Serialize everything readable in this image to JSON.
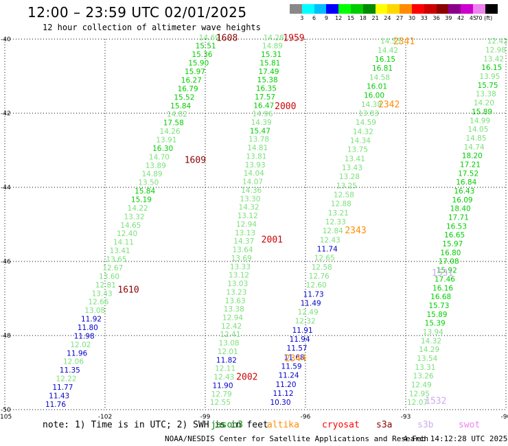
{
  "title": "12:00 – 23:59 UTC 02/01/2025",
  "subtitle": "12 hour collection of altimeter wave heights",
  "colorbar": {
    "colors": [
      "#888888",
      "#00ffff",
      "#00bfff",
      "#0000ff",
      "#00ff00",
      "#00cd00",
      "#008b00",
      "#ffff00",
      "#ffd700",
      "#ff8c00",
      "#ff0000",
      "#cd0000",
      "#8b0000",
      "#8b008b",
      "#cd00cd",
      "#ee82ee",
      "#000000"
    ],
    "ticks": [
      "3",
      "6",
      "9",
      "12",
      "15",
      "18",
      "21",
      "24",
      "27",
      "30",
      "33",
      "36",
      "39",
      "42",
      "45",
      "70 (ft)"
    ]
  },
  "axes": {
    "x_label_values": [
      -105,
      -102,
      -99,
      -96,
      -93,
      -90
    ],
    "x_tick_labels": [
      "-105",
      "-102",
      "-99",
      "-96",
      "-93",
      "-90"
    ],
    "y_label_values": [
      -40,
      -42,
      -44,
      -46,
      -48,
      -50
    ],
    "y_tick_labels": [
      "-40",
      "-42",
      "-44",
      "-46",
      "-48",
      "-50"
    ]
  },
  "note": "note: 1) Time is in UTC; 2) SWH is in feet",
  "satellites": [
    {
      "name": "jason3",
      "color": "#008b00"
    },
    {
      "name": "altika",
      "color": "#ff8c00"
    },
    {
      "name": "cryosat",
      "color": "#ff0000"
    },
    {
      "name": "s3a",
      "color": "#8b0000"
    },
    {
      "name": "s3b",
      "color": "#ccaaee"
    },
    {
      "name": "swot",
      "color": "#ee82ee"
    }
  ],
  "credit": "NOAA/NESDIS Center for Satellite Applications and Research",
  "timestamp": "4 Feb 14:12:28 UTC 2025",
  "time_labels": [
    {
      "text": "1608",
      "lon": -98.35,
      "lat": -39.95,
      "color": "#8b0000"
    },
    {
      "text": "1959",
      "lon": -96.35,
      "lat": -39.95,
      "color": "#cd0000"
    },
    {
      "text": "2341",
      "lon": -93.05,
      "lat": -40.05,
      "color": "#ff8c00"
    },
    {
      "text": "2000",
      "lon": -96.6,
      "lat": -41.8,
      "color": "#cd0000"
    },
    {
      "text": "2342",
      "lon": -93.5,
      "lat": -41.75,
      "color": "#ff8c00"
    },
    {
      "text": "1609",
      "lon": -99.3,
      "lat": -43.25,
      "color": "#8b0000"
    },
    {
      "text": "2001",
      "lon": -97.0,
      "lat": -45.4,
      "color": "#cd0000"
    },
    {
      "text": "2343",
      "lon": -94.5,
      "lat": -45.15,
      "color": "#ff8c00"
    },
    {
      "text": "1610",
      "lon": -101.3,
      "lat": -46.75,
      "color": "#8b0000"
    },
    {
      "text": "1531",
      "lon": -91.9,
      "lat": -46.3,
      "color": "#ccaaee"
    },
    {
      "text": "2344",
      "lon": -96.3,
      "lat": -48.6,
      "color": "#ff8c00"
    },
    {
      "text": "2002",
      "lon": -97.75,
      "lat": -49.1,
      "color": "#cd0000"
    },
    {
      "text": "1532",
      "lon": -92.1,
      "lat": -49.75,
      "color": "#ccaaee"
    }
  ],
  "tracks": [
    {
      "name": "s3a-1608",
      "lon0": -98.88,
      "lat0": -39.95,
      "lon1": -103.48,
      "lat1": -49.85,
      "values": [
        [
          "14.69",
          "#7ae07a"
        ],
        [
          "15.51",
          "#00cd00"
        ],
        [
          "15.36",
          "#00cd00"
        ],
        [
          "15.90",
          "#00cd00"
        ],
        [
          "15.97",
          "#00cd00"
        ],
        [
          "16.27",
          "#00cd00"
        ],
        [
          "16.79",
          "#00cd00"
        ],
        [
          "15.52",
          "#00cd00"
        ],
        [
          "15.84",
          "#00cd00"
        ],
        [
          "14.82",
          "#7ae07a"
        ],
        [
          "17.58",
          "#00cd00"
        ],
        [
          "14.26",
          "#7ae07a"
        ],
        [
          "13.91",
          "#7ae07a"
        ],
        [
          "16.30",
          "#00cd00"
        ],
        [
          "14.70",
          "#7ae07a"
        ],
        [
          "13.89",
          "#7ae07a"
        ],
        [
          "14.89",
          "#7ae07a"
        ],
        [
          "13.50",
          "#7ae07a"
        ],
        [
          "15.84",
          "#00cd00"
        ],
        [
          "15.19",
          "#00cd00"
        ],
        [
          "14.22",
          "#7ae07a"
        ],
        [
          "13.32",
          "#7ae07a"
        ],
        [
          "14.65",
          "#7ae07a"
        ],
        [
          "12.40",
          "#7ae07a"
        ],
        [
          "14.11",
          "#7ae07a"
        ],
        [
          "13.41",
          "#7ae07a"
        ],
        [
          "13.65",
          "#7ae07a"
        ],
        [
          "12.67",
          "#7ae07a"
        ],
        [
          "13.60",
          "#7ae07a"
        ],
        [
          "12.81",
          "#7ae07a"
        ],
        [
          "13.43",
          "#7ae07a"
        ],
        [
          "12.66",
          "#7ae07a"
        ],
        [
          "13.08",
          "#7ae07a"
        ],
        [
          "11.92",
          "#0000cd"
        ],
        [
          "11.80",
          "#0000cd"
        ],
        [
          "11.98",
          "#0000cd"
        ],
        [
          "12.02",
          "#7ae07a"
        ],
        [
          "11.96",
          "#0000cd"
        ],
        [
          "12.06",
          "#7ae07a"
        ],
        [
          "11.35",
          "#0000cd"
        ],
        [
          "12.22",
          "#7ae07a"
        ],
        [
          "11.77",
          "#0000cd"
        ],
        [
          "11.43",
          "#0000cd"
        ],
        [
          "11.76",
          "#0000cd"
        ]
      ]
    },
    {
      "name": "s3a-1959",
      "lon0": -96.95,
      "lat0": -39.95,
      "lon1": -98.55,
      "lat1": -49.8,
      "values": [
        [
          "14.28",
          "#7ae07a"
        ],
        [
          "14.89",
          "#7ae07a"
        ],
        [
          "15.31",
          "#00cd00"
        ],
        [
          "15.81",
          "#00cd00"
        ],
        [
          "17.49",
          "#00cd00"
        ],
        [
          "15.38",
          "#00cd00"
        ],
        [
          "16.35",
          "#00cd00"
        ],
        [
          "17.57",
          "#00cd00"
        ],
        [
          "16.47",
          "#00cd00"
        ],
        [
          "14.96",
          "#7ae07a"
        ],
        [
          "14.39",
          "#7ae07a"
        ],
        [
          "15.47",
          "#00cd00"
        ],
        [
          "13.78",
          "#7ae07a"
        ],
        [
          "14.81",
          "#7ae07a"
        ],
        [
          "13.81",
          "#7ae07a"
        ],
        [
          "13.93",
          "#7ae07a"
        ],
        [
          "14.04",
          "#7ae07a"
        ],
        [
          "14.07",
          "#7ae07a"
        ],
        [
          "14.36",
          "#7ae07a"
        ],
        [
          "13.30",
          "#7ae07a"
        ],
        [
          "14.32",
          "#7ae07a"
        ],
        [
          "13.12",
          "#7ae07a"
        ],
        [
          "12.94",
          "#7ae07a"
        ],
        [
          "13.13",
          "#7ae07a"
        ],
        [
          "14.37",
          "#7ae07a"
        ],
        [
          "13.64",
          "#7ae07a"
        ],
        [
          "13.69",
          "#7ae07a"
        ],
        [
          "13.33",
          "#7ae07a"
        ],
        [
          "13.12",
          "#7ae07a"
        ],
        [
          "13.03",
          "#7ae07a"
        ],
        [
          "13.23",
          "#7ae07a"
        ],
        [
          "13.63",
          "#7ae07a"
        ],
        [
          "13.38",
          "#7ae07a"
        ],
        [
          "12.94",
          "#7ae07a"
        ],
        [
          "12.42",
          "#7ae07a"
        ],
        [
          "12.41",
          "#7ae07a"
        ],
        [
          "13.08",
          "#7ae07a"
        ],
        [
          "12.01",
          "#7ae07a"
        ],
        [
          "11.82",
          "#0000cd"
        ],
        [
          "12.11",
          "#7ae07a"
        ],
        [
          "12.43",
          "#7ae07a"
        ],
        [
          "11.90",
          "#0000cd"
        ],
        [
          "12.79",
          "#7ae07a"
        ],
        [
          "12.55",
          "#7ae07a"
        ]
      ]
    },
    {
      "name": "jason3-2341",
      "lon0": -93.45,
      "lat0": -40.05,
      "lon1": -96.75,
      "lat1": -49.8,
      "values": [
        [
          "14.53",
          "#7ae07a"
        ],
        [
          "14.42",
          "#7ae07a"
        ],
        [
          "16.15",
          "#00cd00"
        ],
        [
          "16.81",
          "#00cd00"
        ],
        [
          "14.58",
          "#7ae07a"
        ],
        [
          "16.01",
          "#00cd00"
        ],
        [
          "16.00",
          "#00cd00"
        ],
        [
          "14.38",
          "#7ae07a"
        ],
        [
          "13.83",
          "#7ae07a"
        ],
        [
          "14.59",
          "#7ae07a"
        ],
        [
          "14.32",
          "#7ae07a"
        ],
        [
          "14.34",
          "#7ae07a"
        ],
        [
          "13.75",
          "#7ae07a"
        ],
        [
          "13.41",
          "#7ae07a"
        ],
        [
          "13.43",
          "#7ae07a"
        ],
        [
          "13.28",
          "#7ae07a"
        ],
        [
          "13.25",
          "#7ae07a"
        ],
        [
          "12.58",
          "#7ae07a"
        ],
        [
          "12.88",
          "#7ae07a"
        ],
        [
          "13.21",
          "#7ae07a"
        ],
        [
          "12.33",
          "#7ae07a"
        ],
        [
          "12.84",
          "#7ae07a"
        ],
        [
          "12.43",
          "#7ae07a"
        ],
        [
          "11.74",
          "#0000cd"
        ],
        [
          "12.65",
          "#7ae07a"
        ],
        [
          "12.58",
          "#7ae07a"
        ],
        [
          "12.76",
          "#7ae07a"
        ],
        [
          "12.60",
          "#7ae07a"
        ],
        [
          "11.73",
          "#0000cd"
        ],
        [
          "11.49",
          "#0000cd"
        ],
        [
          "12.49",
          "#7ae07a"
        ],
        [
          "12.32",
          "#7ae07a"
        ],
        [
          "11.91",
          "#0000cd"
        ],
        [
          "11.94",
          "#0000cd"
        ],
        [
          "11.57",
          "#0000cd"
        ],
        [
          "11.68",
          "#0000cd"
        ],
        [
          "11.59",
          "#0000cd"
        ],
        [
          "11.24",
          "#0000cd"
        ],
        [
          "11.20",
          "#0000cd"
        ],
        [
          "11.12",
          "#0000cd"
        ],
        [
          "10.30",
          "#0000cd"
        ]
      ]
    },
    {
      "name": "s3b-1531",
      "lon0": -90.25,
      "lat0": -40.05,
      "lon1": -92.65,
      "lat1": -49.8,
      "values": [
        [
          "12.42",
          "#7ae07a"
        ],
        [
          "12.98",
          "#7ae07a"
        ],
        [
          "13.42",
          "#7ae07a"
        ],
        [
          "16.15",
          "#00cd00"
        ],
        [
          "13.95",
          "#7ae07a"
        ],
        [
          "15.75",
          "#00cd00"
        ],
        [
          "13.38",
          "#7ae07a"
        ],
        [
          "14.20",
          "#7ae07a"
        ],
        [
          "15.89",
          "#00cd00"
        ],
        [
          "14.99",
          "#7ae07a"
        ],
        [
          "14.05",
          "#7ae07a"
        ],
        [
          "14.85",
          "#7ae07a"
        ],
        [
          "14.74",
          "#7ae07a"
        ],
        [
          "18.20",
          "#00cd00"
        ],
        [
          "17.21",
          "#00cd00"
        ],
        [
          "17.52",
          "#00cd00"
        ],
        [
          "16.84",
          "#00cd00"
        ],
        [
          "16.43",
          "#00cd00"
        ],
        [
          "16.09",
          "#00cd00"
        ],
        [
          "18.40",
          "#00cd00"
        ],
        [
          "17.71",
          "#00cd00"
        ],
        [
          "16.53",
          "#00cd00"
        ],
        [
          "16.65",
          "#00cd00"
        ],
        [
          "15.97",
          "#00cd00"
        ],
        [
          "16.80",
          "#00cd00"
        ],
        [
          "17.08",
          "#00cd00"
        ],
        [
          "15.92",
          "#00cd00"
        ],
        [
          "17.46",
          "#00cd00"
        ],
        [
          "16.16",
          "#00cd00"
        ],
        [
          "16.68",
          "#00cd00"
        ],
        [
          "15.73",
          "#00cd00"
        ],
        [
          "15.89",
          "#00cd00"
        ],
        [
          "15.39",
          "#00cd00"
        ],
        [
          "13.94",
          "#7ae07a"
        ],
        [
          "14.32",
          "#7ae07a"
        ],
        [
          "14.29",
          "#7ae07a"
        ],
        [
          "13.54",
          "#7ae07a"
        ],
        [
          "13.31",
          "#7ae07a"
        ],
        [
          "13.26",
          "#7ae07a"
        ],
        [
          "12.49",
          "#7ae07a"
        ],
        [
          "12.95",
          "#7ae07a"
        ],
        [
          "12.07",
          "#7ae07a"
        ]
      ]
    }
  ]
}
